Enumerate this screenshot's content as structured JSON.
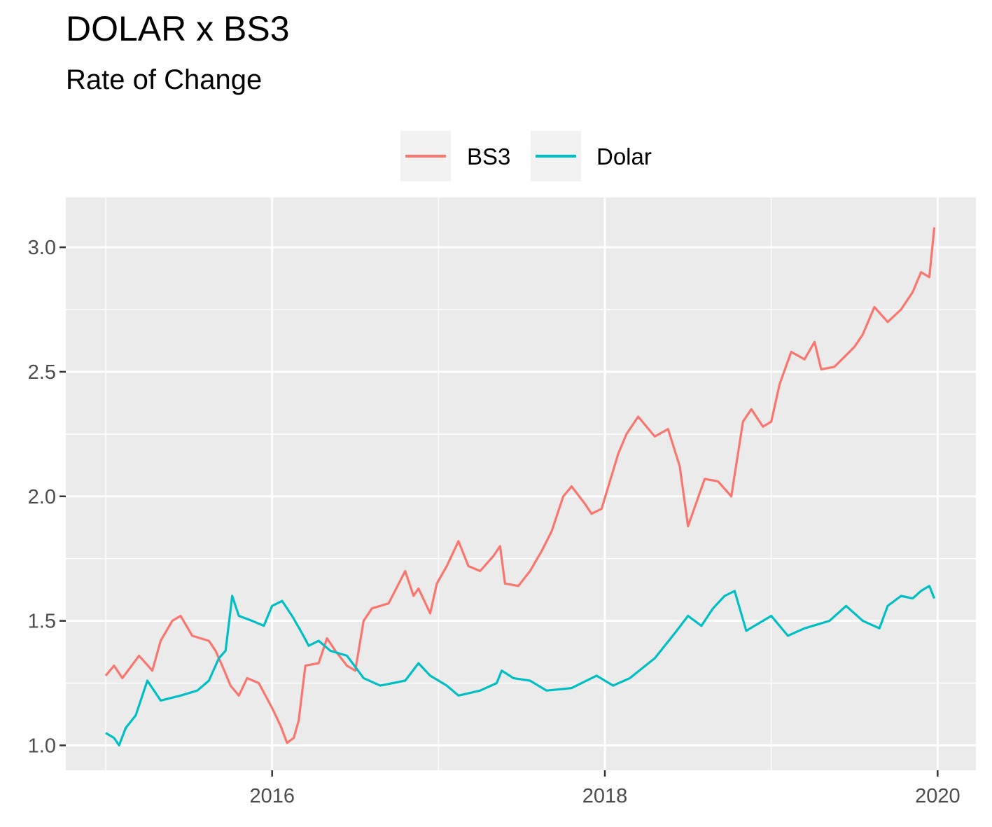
{
  "chart_data": {
    "type": "line",
    "title": "DOLAR x BS3",
    "subtitle": "Rate of Change",
    "xlabel": "",
    "ylabel": "",
    "xlim": [
      2014.76,
      2020.23
    ],
    "ylim": [
      0.9,
      3.2
    ],
    "x_ticks": [
      {
        "value": 2016,
        "label": "2016"
      },
      {
        "value": 2018,
        "label": "2018"
      },
      {
        "value": 2020,
        "label": "2020"
      }
    ],
    "y_ticks": [
      {
        "value": 1.0,
        "label": "1.0"
      },
      {
        "value": 1.5,
        "label": "1.5"
      },
      {
        "value": 2.0,
        "label": "2.0"
      },
      {
        "value": 2.5,
        "label": "2.5"
      },
      {
        "value": 3.0,
        "label": "3.0"
      }
    ],
    "x_minor_ticks": [
      2015,
      2017,
      2019
    ],
    "y_minor_ticks": [
      1.25,
      1.75,
      2.25,
      2.75
    ],
    "grid": true,
    "legend_position": "top",
    "series": [
      {
        "name": "BS3",
        "color": "#F8766D",
        "x": [
          2015.0,
          2015.05,
          2015.1,
          2015.2,
          2015.28,
          2015.33,
          2015.4,
          2015.45,
          2015.52,
          2015.62,
          2015.66,
          2015.7,
          2015.75,
          2015.8,
          2015.85,
          2015.92,
          2015.96,
          2016.0,
          2016.05,
          2016.09,
          2016.13,
          2016.16,
          2016.2,
          2016.28,
          2016.33,
          2016.38,
          2016.45,
          2016.5,
          2016.55,
          2016.6,
          2016.7,
          2016.8,
          2016.85,
          2016.88,
          2016.95,
          2016.99,
          2017.05,
          2017.12,
          2017.18,
          2017.25,
          2017.33,
          2017.37,
          2017.4,
          2017.48,
          2017.55,
          2017.62,
          2017.68,
          2017.75,
          2017.8,
          2017.88,
          2017.92,
          2017.98,
          2018.08,
          2018.13,
          2018.2,
          2018.3,
          2018.38,
          2018.45,
          2018.5,
          2018.6,
          2018.68,
          2018.76,
          2018.83,
          2018.88,
          2018.95,
          2019.0,
          2019.05,
          2019.12,
          2019.2,
          2019.26,
          2019.3,
          2019.38,
          2019.5,
          2019.55,
          2019.62,
          2019.7,
          2019.78,
          2019.85,
          2019.9,
          2019.95,
          2019.98
        ],
        "values": [
          1.28,
          1.32,
          1.27,
          1.36,
          1.3,
          1.42,
          1.5,
          1.52,
          1.44,
          1.42,
          1.38,
          1.32,
          1.24,
          1.2,
          1.27,
          1.25,
          1.2,
          1.15,
          1.08,
          1.01,
          1.03,
          1.1,
          1.32,
          1.33,
          1.43,
          1.38,
          1.32,
          1.3,
          1.5,
          1.55,
          1.57,
          1.7,
          1.6,
          1.63,
          1.53,
          1.65,
          1.72,
          1.82,
          1.72,
          1.7,
          1.76,
          1.8,
          1.65,
          1.64,
          1.7,
          1.78,
          1.86,
          2.0,
          2.04,
          1.97,
          1.93,
          1.95,
          2.17,
          2.25,
          2.32,
          2.24,
          2.27,
          2.12,
          1.88,
          2.07,
          2.06,
          2.0,
          2.3,
          2.35,
          2.28,
          2.3,
          2.45,
          2.58,
          2.55,
          2.62,
          2.51,
          2.52,
          2.6,
          2.65,
          2.76,
          2.7,
          2.75,
          2.82,
          2.9,
          2.88,
          3.08
        ]
      },
      {
        "name": "Dolar",
        "color": "#00BFC4",
        "x": [
          2015.0,
          2015.05,
          2015.08,
          2015.12,
          2015.18,
          2015.25,
          2015.33,
          2015.45,
          2015.55,
          2015.62,
          2015.68,
          2015.72,
          2015.76,
          2015.8,
          2015.88,
          2015.95,
          2016.0,
          2016.06,
          2016.12,
          2016.18,
          2016.22,
          2016.28,
          2016.35,
          2016.45,
          2016.55,
          2016.65,
          2016.8,
          2016.88,
          2016.95,
          2017.05,
          2017.12,
          2017.25,
          2017.35,
          2017.38,
          2017.45,
          2017.55,
          2017.65,
          2017.8,
          2017.95,
          2018.05,
          2018.15,
          2018.3,
          2018.42,
          2018.5,
          2018.58,
          2018.65,
          2018.72,
          2018.78,
          2018.85,
          2018.95,
          2019.0,
          2019.1,
          2019.2,
          2019.35,
          2019.45,
          2019.55,
          2019.65,
          2019.7,
          2019.78,
          2019.85,
          2019.9,
          2019.95,
          2019.98
        ],
        "values": [
          1.05,
          1.03,
          1.0,
          1.07,
          1.12,
          1.26,
          1.18,
          1.2,
          1.22,
          1.26,
          1.35,
          1.38,
          1.6,
          1.52,
          1.5,
          1.48,
          1.56,
          1.58,
          1.52,
          1.45,
          1.4,
          1.42,
          1.38,
          1.36,
          1.27,
          1.24,
          1.26,
          1.33,
          1.28,
          1.24,
          1.2,
          1.22,
          1.25,
          1.3,
          1.27,
          1.26,
          1.22,
          1.23,
          1.28,
          1.24,
          1.27,
          1.35,
          1.45,
          1.52,
          1.48,
          1.55,
          1.6,
          1.62,
          1.46,
          1.5,
          1.52,
          1.44,
          1.47,
          1.5,
          1.56,
          1.5,
          1.47,
          1.56,
          1.6,
          1.59,
          1.62,
          1.64,
          1.59
        ]
      }
    ]
  }
}
